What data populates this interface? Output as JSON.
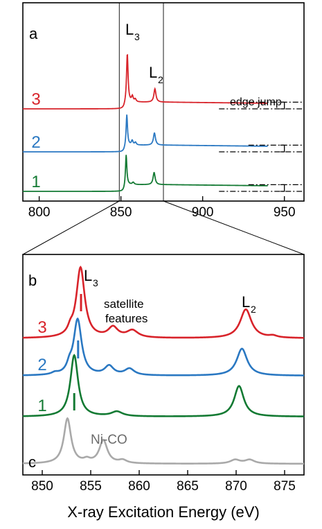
{
  "colors": {
    "red": "#d8232a",
    "blue": "#2a78c2",
    "green": "#137a33",
    "gray": "#a9a9a9",
    "axis": "#000000",
    "text_gray": "#6b6b6b"
  },
  "chart_data": [
    {
      "panel": "a",
      "type": "line",
      "xlim": [
        790,
        962
      ],
      "xticks": [
        800,
        850,
        900,
        950
      ],
      "tick_labels": [
        "800",
        "850",
        "900",
        "950"
      ],
      "zoom_lines": [
        849,
        876
      ],
      "series": [
        {
          "name": "3",
          "offset": 2.0,
          "pre_edge": 0.0,
          "post_edge": 0.3,
          "color": "red",
          "peaks": [
            {
              "x": 853.9,
              "h": 2.2,
              "w": 0.55
            },
            {
              "x": 857.0,
              "h": 0.25,
              "w": 0.6
            },
            {
              "x": 858.8,
              "h": 0.12,
              "w": 0.6
            },
            {
              "x": 870.8,
              "h": 0.6,
              "w": 0.75
            }
          ]
        },
        {
          "name": "2",
          "offset": 1.0,
          "pre_edge": 0.0,
          "post_edge": 0.3,
          "color": "blue",
          "peaks": [
            {
              "x": 853.6,
              "h": 1.4,
              "w": 0.5
            },
            {
              "x": 856.9,
              "h": 0.2,
              "w": 0.6
            },
            {
              "x": 858.9,
              "h": 0.12,
              "w": 0.6
            },
            {
              "x": 870.5,
              "h": 0.55,
              "w": 0.75
            }
          ]
        },
        {
          "name": "1",
          "offset": 0.0,
          "pre_edge": 0.0,
          "post_edge": 0.3,
          "color": "green",
          "peaks": [
            {
              "x": 853.2,
              "h": 1.4,
              "w": 0.5
            },
            {
              "x": 857.5,
              "h": 0.1,
              "w": 0.7
            },
            {
              "x": 870.3,
              "h": 0.55,
              "w": 0.75
            }
          ]
        }
      ],
      "annotations": {
        "panel_letter": "a",
        "L3": "L",
        "L3_sub": "3",
        "L2": "L",
        "L2_sub": "2",
        "edge_jump": "edge jump"
      }
    },
    {
      "panel": "b",
      "type": "line",
      "xlim": [
        848,
        877
      ],
      "xticks": [
        850,
        855,
        860,
        865,
        870,
        875
      ],
      "tick_labels": [
        "850",
        "855",
        "860",
        "865",
        "870",
        "875"
      ],
      "xlabel": "X-ray Excitation Energy (eV)",
      "series": [
        {
          "name": "3",
          "baseline": 3.0,
          "color": "red",
          "peaks": [
            {
              "x": 853.95,
              "h": 1.95,
              "w": 0.52
            },
            {
              "x": 852.9,
              "h": 0.15,
              "w": 0.3
            },
            {
              "x": 857.3,
              "h": 0.28,
              "w": 0.6
            },
            {
              "x": 859.3,
              "h": 0.2,
              "w": 0.7
            },
            {
              "x": 871.0,
              "h": 0.8,
              "w": 0.7
            },
            {
              "x": 873.8,
              "h": 0.05,
              "w": 0.5
            }
          ]
        },
        {
          "name": "2",
          "baseline": 2.0,
          "color": "blue",
          "peaks": [
            {
              "x": 853.65,
              "h": 1.55,
              "w": 0.5
            },
            {
              "x": 852.8,
              "h": 0.18,
              "w": 0.3
            },
            {
              "x": 856.9,
              "h": 0.25,
              "w": 0.55
            },
            {
              "x": 859.0,
              "h": 0.18,
              "w": 0.6
            },
            {
              "x": 870.6,
              "h": 0.75,
              "w": 0.65
            },
            {
              "x": 851.3,
              "h": 0.05,
              "w": 0.4
            }
          ]
        },
        {
          "name": "1",
          "baseline": 1.0,
          "color": "green",
          "peaks": [
            {
              "x": 853.3,
              "h": 1.7,
              "w": 0.48
            },
            {
              "x": 857.7,
              "h": 0.13,
              "w": 0.7
            },
            {
              "x": 870.3,
              "h": 0.85,
              "w": 0.6
            }
          ]
        },
        {
          "name": "Ni-CO",
          "baseline": 0.0,
          "color": "gray",
          "peaks": [
            {
              "x": 852.6,
              "h": 1.75,
              "w": 0.45
            },
            {
              "x": 854.6,
              "h": 0.12,
              "w": 0.4
            },
            {
              "x": 856.3,
              "h": 0.9,
              "w": 0.5
            },
            {
              "x": 858.3,
              "h": 0.12,
              "w": 0.5
            },
            {
              "x": 869.9,
              "h": 0.15,
              "w": 0.6
            },
            {
              "x": 871.4,
              "h": 0.15,
              "w": 0.6
            }
          ]
        }
      ],
      "markers": [
        {
          "series": "3",
          "x": 854.0
        },
        {
          "series": "2",
          "x": 853.7
        },
        {
          "series": "1",
          "x": 853.3
        }
      ],
      "annotations": {
        "panel_letter": "b",
        "panel_letter_c": "c",
        "L3": "L",
        "L3_sub": "3",
        "L2": "L",
        "L2_sub": "2",
        "satellite_line1": "satellite",
        "satellite_line2": "features",
        "reference": "Ni-CO"
      }
    }
  ]
}
